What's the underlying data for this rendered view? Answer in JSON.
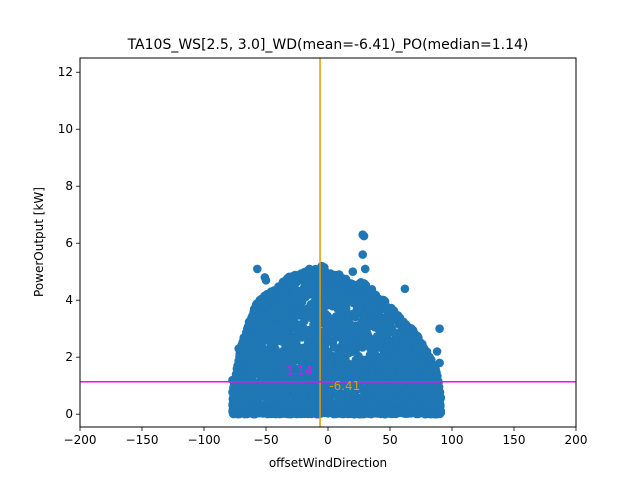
{
  "chart_data": {
    "type": "scatter",
    "title": "TA10S_WS[2.5, 3.0]_WD(mean=-6.41)_PO(median=1.14)",
    "xlabel": "offsetWindDirection",
    "ylabel": "PowerOutput [kW]",
    "xlim": [
      -200,
      200
    ],
    "ylim": [
      -0.45,
      12.5
    ],
    "xticks": [
      -200,
      -150,
      -100,
      -50,
      0,
      50,
      100,
      150,
      200
    ],
    "xtick_labels": [
      "−200",
      "−150",
      "−100",
      "−50",
      "0",
      "50",
      "100",
      "150",
      "200"
    ],
    "yticks": [
      0,
      2,
      4,
      6,
      8,
      10,
      12
    ],
    "ytick_labels": [
      "0",
      "2",
      "4",
      "6",
      "8",
      "10",
      "12"
    ],
    "grid": false,
    "point_color": "#1f77b4",
    "x_span": [
      -77,
      91
    ],
    "envelope": [
      {
        "x": -77,
        "y": 0.8
      },
      {
        "x": -70,
        "y": 2.4
      },
      {
        "x": -65,
        "y": 3.1
      },
      {
        "x": -58,
        "y": 3.9
      },
      {
        "x": -50,
        "y": 4.2
      },
      {
        "x": -40,
        "y": 4.5
      },
      {
        "x": -30,
        "y": 4.9
      },
      {
        "x": -20,
        "y": 5.0
      },
      {
        "x": -10,
        "y": 5.1
      },
      {
        "x": 0,
        "y": 5.0
      },
      {
        "x": 10,
        "y": 4.8
      },
      {
        "x": 20,
        "y": 4.7
      },
      {
        "x": 30,
        "y": 4.6
      },
      {
        "x": 40,
        "y": 4.2
      },
      {
        "x": 50,
        "y": 3.8
      },
      {
        "x": 60,
        "y": 3.3
      },
      {
        "x": 70,
        "y": 2.9
      },
      {
        "x": 80,
        "y": 2.2
      },
      {
        "x": 88,
        "y": 1.5
      },
      {
        "x": 91,
        "y": 0.6
      }
    ],
    "outliers": [
      {
        "x": -57,
        "y": 5.1
      },
      {
        "x": -51,
        "y": 4.8
      },
      {
        "x": -50,
        "y": 4.7
      },
      {
        "x": -15,
        "y": 5.1
      },
      {
        "x": -5,
        "y": 5.2
      },
      {
        "x": -3,
        "y": 5.15
      },
      {
        "x": 9,
        "y": 4.9
      },
      {
        "x": 28,
        "y": 6.3
      },
      {
        "x": 29,
        "y": 6.25
      },
      {
        "x": 28,
        "y": 5.6
      },
      {
        "x": 30,
        "y": 5.1
      },
      {
        "x": 20,
        "y": 5.0
      },
      {
        "x": 62,
        "y": 4.4
      },
      {
        "x": 90,
        "y": 3.0
      },
      {
        "x": 90,
        "y": 1.8
      },
      {
        "x": 88,
        "y": 2.2
      },
      {
        "x": 75,
        "y": 2.4
      },
      {
        "x": -68,
        "y": 2.5
      },
      {
        "x": -72,
        "y": 2.3
      },
      {
        "x": -77,
        "y": 1.2
      },
      {
        "x": -55,
        "y": 4.0
      },
      {
        "x": -60,
        "y": 3.2
      },
      {
        "x": 45,
        "y": 3.9
      }
    ],
    "mean_line": {
      "x": -6.41,
      "color": "#e69a00",
      "label": "-6.41"
    },
    "median_line": {
      "y": 1.14,
      "color": "#ff00ff",
      "label": "1.14"
    }
  }
}
